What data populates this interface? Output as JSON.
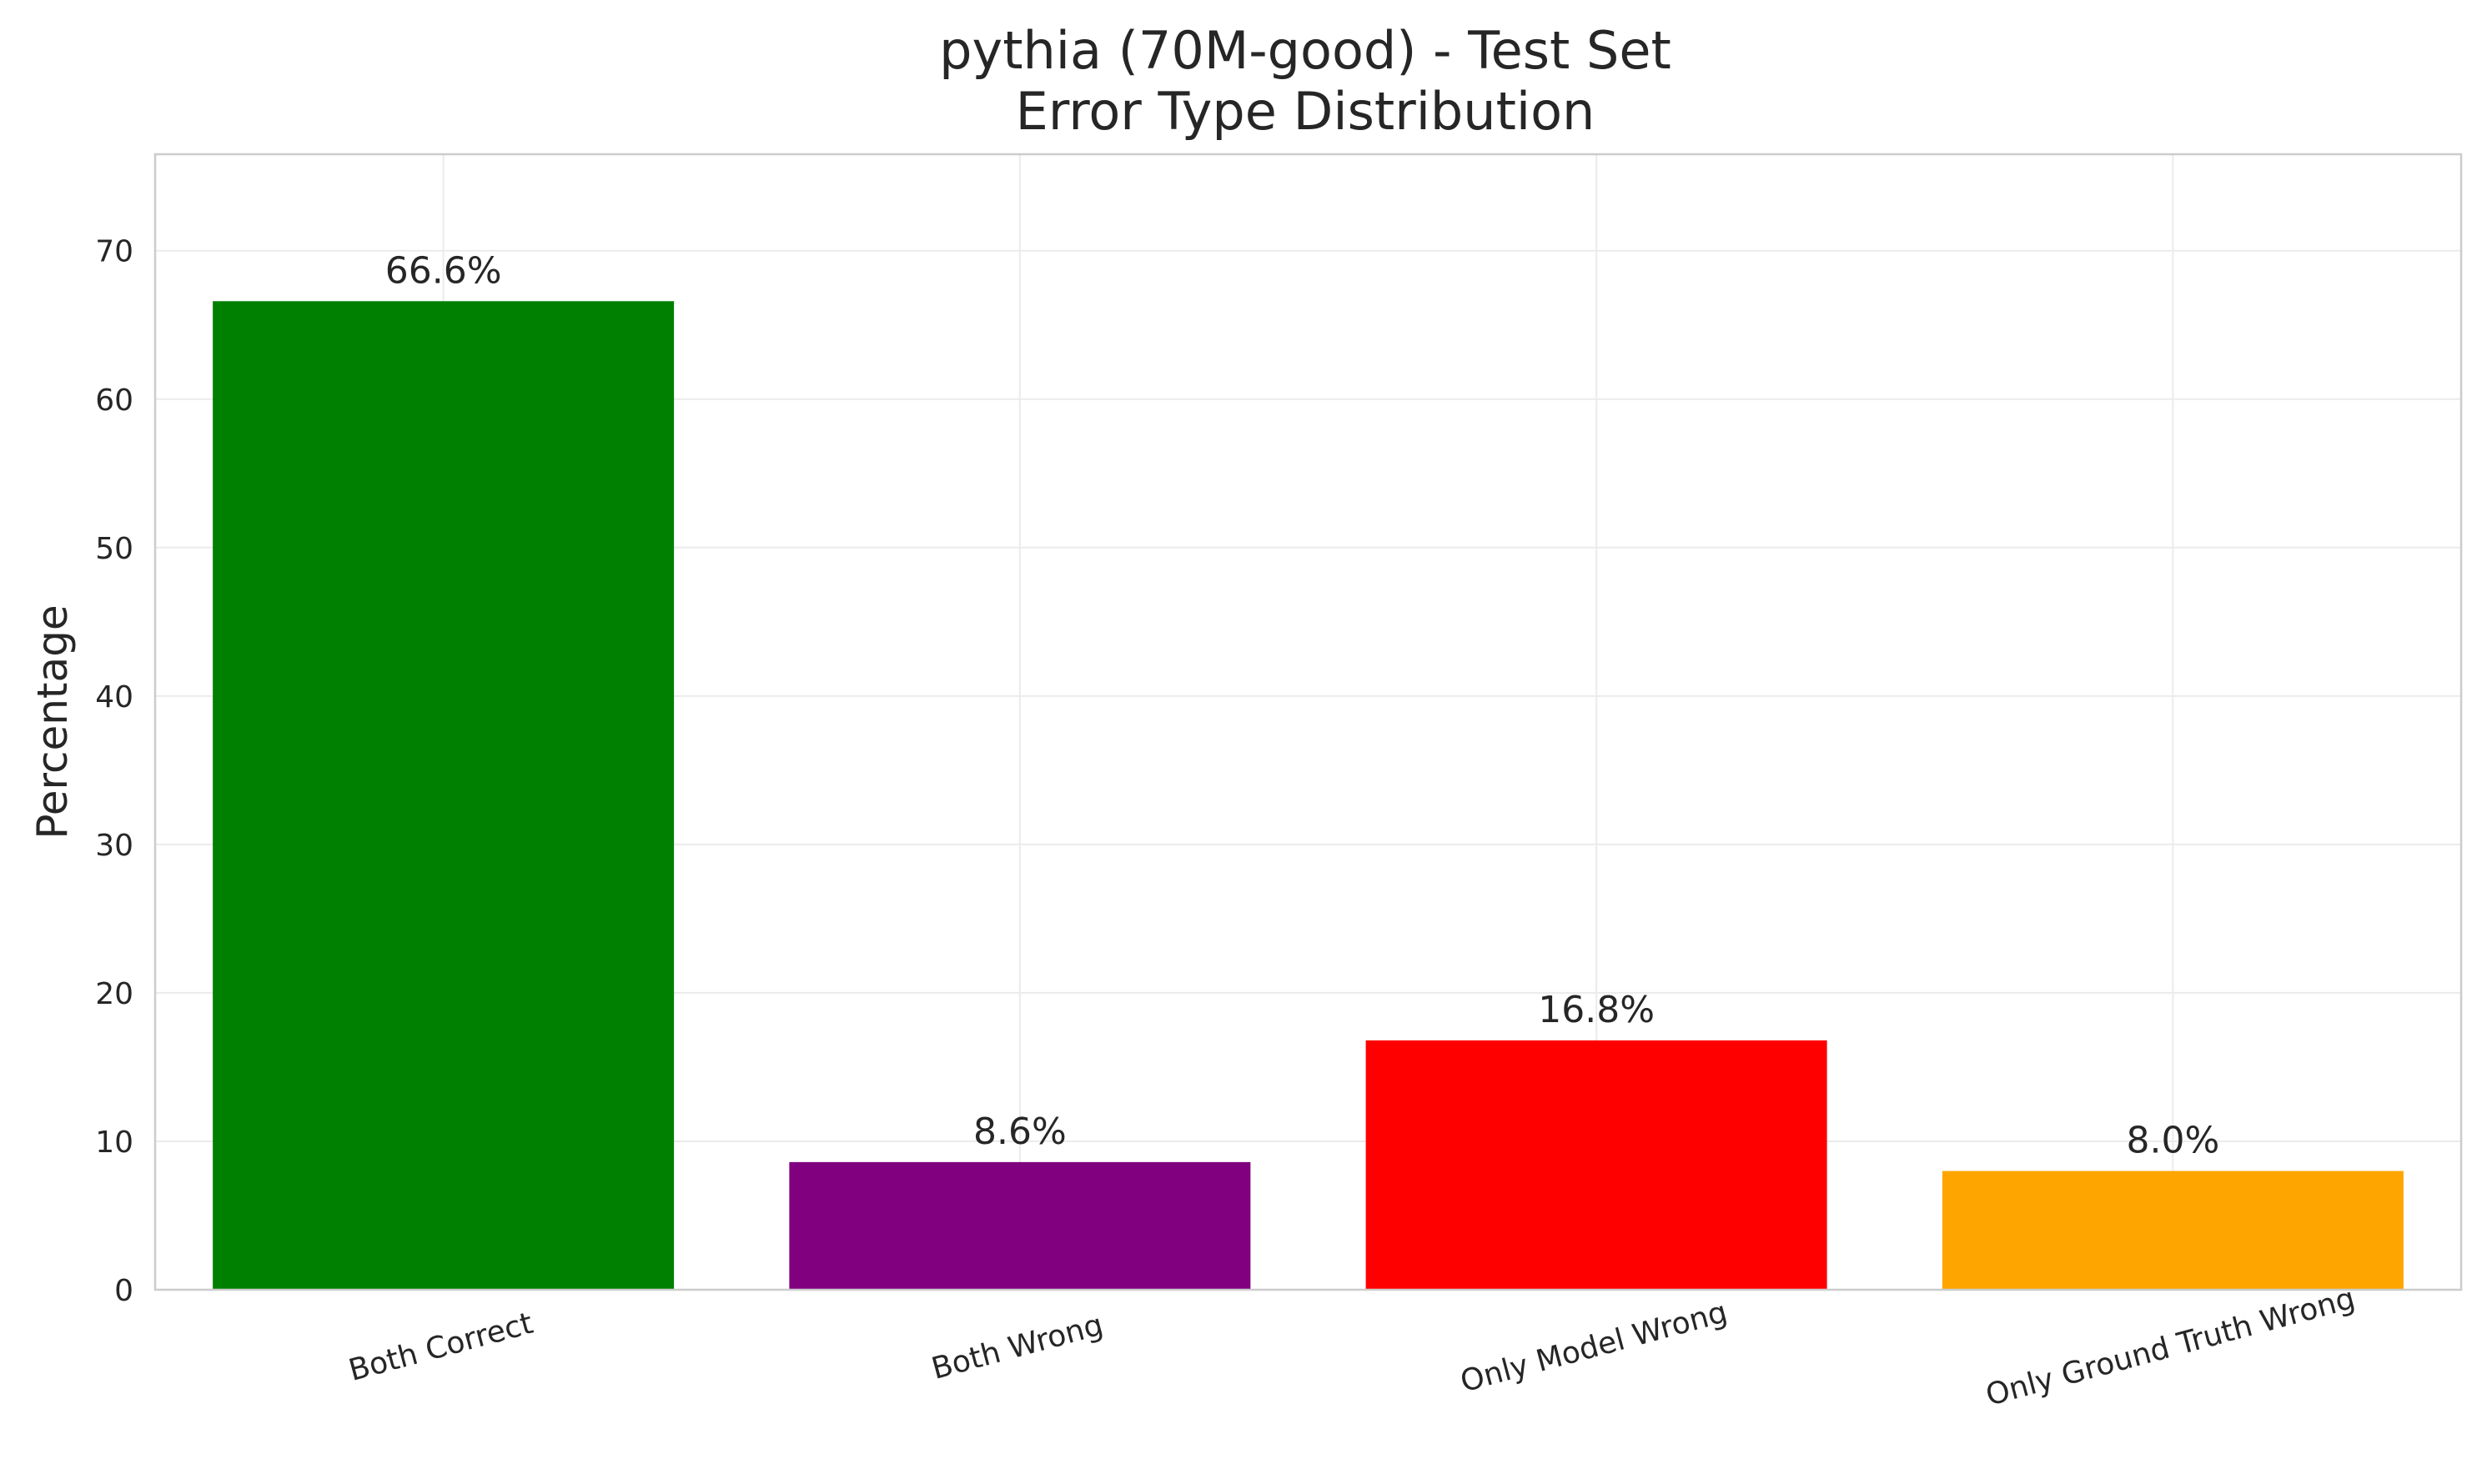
{
  "chart_data": {
    "type": "bar",
    "title": [
      "pythia (70M-good) - Test Set",
      "Error Type Distribution"
    ],
    "xlabel": "",
    "ylabel": "Percentage",
    "categories": [
      "Both Correct",
      "Both Wrong",
      "Only Model Wrong",
      "Only Ground Truth Wrong"
    ],
    "values": [
      66.6,
      8.6,
      16.8,
      8.0
    ],
    "data_labels": [
      "66.6%",
      "8.6%",
      "16.8%",
      "8.0%"
    ],
    "colors": [
      "#008000",
      "#800080",
      "#ff0000",
      "#ffa500"
    ],
    "ylim": [
      0,
      76.5
    ],
    "yticks": [
      0,
      10,
      20,
      30,
      40,
      50,
      60,
      70
    ],
    "xtick_rotation_deg": 15,
    "grid": true,
    "legend": "none"
  }
}
